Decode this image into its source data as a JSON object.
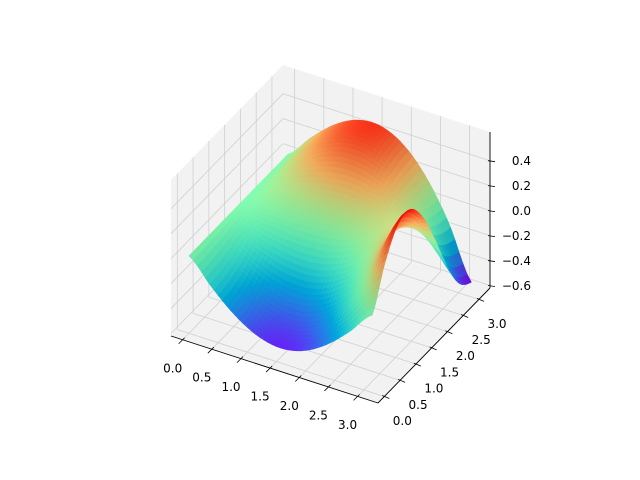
{
  "chart_data": {
    "type": "surface",
    "title": "",
    "xlabel": "",
    "ylabel": "",
    "zlabel": "",
    "colormap": "rainbow",
    "grid": true,
    "xlim": [
      -0.2,
      3.35
    ],
    "ylim": [
      -0.2,
      3.35
    ],
    "zlim": [
      -0.62,
      0.63
    ],
    "x_ticks": [
      "0.0",
      "0.5",
      "1.0",
      "1.5",
      "2.0",
      "2.5",
      "3.0"
    ],
    "y_ticks": [
      "0.0",
      "0.5",
      "1.0",
      "1.5",
      "2.0",
      "2.5",
      "3.0"
    ],
    "z_ticks": [
      "−0.6",
      "−0.4",
      "−0.2",
      "0.0",
      "0.2",
      "0.4"
    ],
    "x_tick_values": [
      0,
      0.5,
      1,
      1.5,
      2,
      2.5,
      3
    ],
    "y_tick_values": [
      0,
      0.5,
      1,
      1.5,
      2,
      2.5,
      3
    ],
    "z_tick_values": [
      -0.6,
      -0.4,
      -0.2,
      0,
      0.2,
      0.4
    ],
    "x": [
      0,
      0.393,
      0.785,
      1.178,
      1.571,
      1.963,
      2.356,
      2.749,
      3.142
    ],
    "y": [
      0,
      0.393,
      0.785,
      1.178,
      1.571,
      1.963,
      2.356,
      2.749,
      3.142
    ],
    "z": [
      [
        0,
        0,
        0,
        0,
        0,
        0,
        0,
        0,
        0
      ],
      [
        -0.192,
        -0.177,
        -0.135,
        -0.073,
        0,
        0.073,
        0.135,
        0.177,
        0.192
      ],
      [
        -0.354,
        -0.326,
        -0.248,
        -0.133,
        0.001,
        0.135,
        0.249,
        0.325,
        0.352
      ],
      [
        -0.462,
        -0.421,
        -0.317,
        -0.166,
        0.008,
        0.179,
        0.323,
        0.418,
        0.451
      ],
      [
        -0.5,
        -0.443,
        -0.322,
        -0.158,
        0.024,
        0.199,
        0.341,
        0.433,
        0.466
      ],
      [
        -0.462,
        -0.38,
        -0.249,
        -0.094,
        0.059,
        0.193,
        0.295,
        0.357,
        0.378
      ],
      [
        -0.354,
        -0.23,
        -0.089,
        0.035,
        0.123,
        0.169,
        0.183,
        0.183,
        0.18
      ],
      [
        -0.192,
        0.002,
        0.163,
        0.243,
        0.228,
        0.136,
        0.012,
        -0.091,
        -0.13
      ],
      [
        0,
        0.306,
        0.508,
        0.54,
        0.389,
        0.107,
        -0.211,
        -0.457,
        -0.55
      ]
    ]
  }
}
